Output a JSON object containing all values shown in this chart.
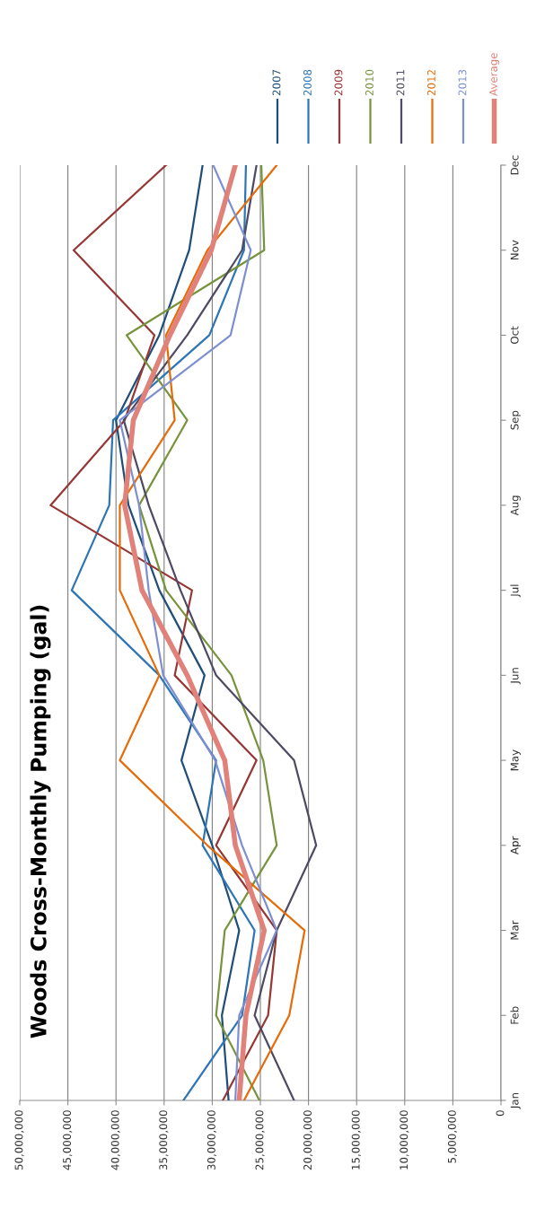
{
  "chart_data": {
    "type": "line",
    "orientation": "horizontal",
    "title": "Woods Cross-Monthly Pumping (gal)",
    "categories": [
      "Dec",
      "Nov",
      "Oct",
      "Sep",
      "Aug",
      "Jul",
      "Jun",
      "May",
      "Apr",
      "Mar",
      "Feb",
      "Jan"
    ],
    "series": [
      {
        "name": "2007",
        "color": "#1f4e79",
        "values": [
          31000000.0,
          32400000.0,
          35500000.0,
          40000000.0,
          38700000.0,
          35500000.0,
          30800000.0,
          33200000.0,
          30000000.0,
          27200000.0,
          29000000.0,
          28300000.0
        ]
      },
      {
        "name": "2008",
        "color": "#2e75b6",
        "values": [
          26500000.0,
          26700000.0,
          30300000.0,
          40300000.0,
          40700000.0,
          44600000.0,
          35500000.0,
          29600000.0,
          31000000.0,
          25600000.0,
          26900000.0,
          33000000.0
        ]
      },
      {
        "name": "2009",
        "color": "#953735",
        "values": [
          34800000.0,
          44400000.0,
          36000000.0,
          39100000.0,
          46800000.0,
          32100000.0,
          33900000.0,
          25400000.0,
          29600000.0,
          23300000.0,
          24200000.0,
          28900000.0
        ]
      },
      {
        "name": "2010",
        "color": "#77933c",
        "values": [
          24900000.0,
          24600000.0,
          38900000.0,
          32600000.0,
          37600000.0,
          34800000.0,
          28000000.0,
          24700000.0,
          23300000.0,
          28700000.0,
          29600000.0,
          25100000.0
        ]
      },
      {
        "name": "2011",
        "color": "#4f4a63",
        "values": [
          25400000.0,
          26900000.0,
          32600000.0,
          39200000.0,
          36600000.0,
          33300000.0,
          29600000.0,
          21500000.0,
          19200000.0,
          23300000.0,
          25600000.0,
          21500000.0
        ]
      },
      {
        "name": "2012",
        "color": "#e46c0a",
        "values": [
          23300000.0,
          30500000.0,
          34800000.0,
          33900000.0,
          39600000.0,
          39600000.0,
          35500000.0,
          39600000.0,
          30500000.0,
          20400000.0,
          22000000.0,
          26700000.0
        ]
      },
      {
        "name": "2013",
        "color": "#7e8fd0",
        "values": [
          29900000.0,
          26000000.0,
          28100000.0,
          39600000.0,
          37600000.0,
          36600000.0,
          35100000.0,
          29700000.0,
          26900000.0,
          23300000.0,
          27200000.0,
          27600000.0
        ]
      },
      {
        "name": "Average",
        "color": "#e0827a",
        "values": [
          27600000.0,
          30100000.0,
          34400000.0,
          38200000.0,
          39100000.0,
          37300000.0,
          32600000.0,
          28700000.0,
          27600000.0,
          24600000.0,
          26500000.0,
          27200000.0
        ]
      }
    ],
    "xlim": [
      50000000,
      0
    ],
    "xticks": [
      {
        "value": 50000000,
        "label": "50,000,000"
      },
      {
        "value": 45000000,
        "label": "45,000,000"
      },
      {
        "value": 40000000,
        "label": "40,000,000"
      },
      {
        "value": 35000000,
        "label": "35,000,000"
      },
      {
        "value": 30000000,
        "label": "30,000,000"
      },
      {
        "value": 25000000,
        "label": "25,000,000"
      },
      {
        "value": 20000000,
        "label": "20,000,000"
      },
      {
        "value": 15000000,
        "label": "15,000,000"
      },
      {
        "value": 10000000,
        "label": "10,000,000"
      },
      {
        "value": 5000000,
        "label": "5,000,000"
      },
      0
    ],
    "grid": "x",
    "legend": "right",
    "marker": "none",
    "line_style": "solid"
  }
}
